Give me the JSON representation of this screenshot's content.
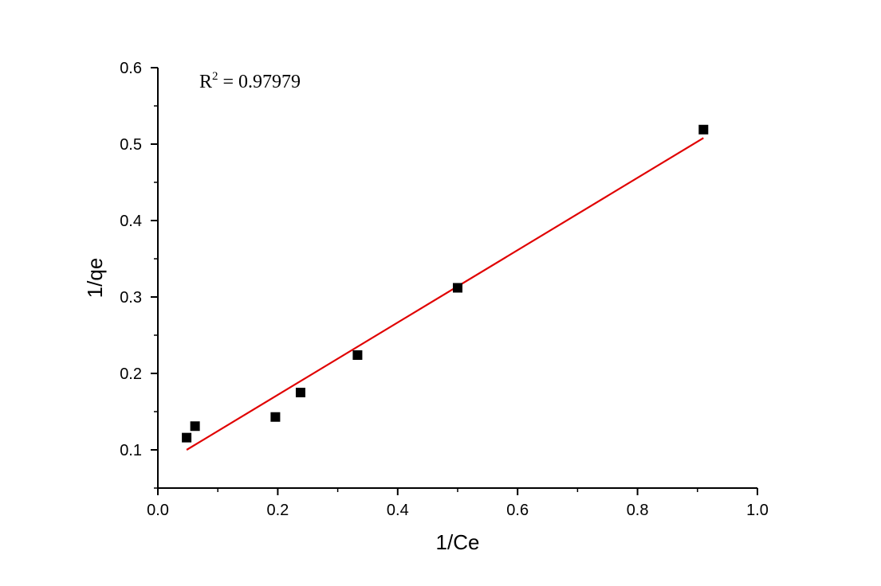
{
  "chart_data": {
    "type": "scatter",
    "title": "",
    "xlabel": "1/Ce",
    "ylabel": "1/qe",
    "xlim": [
      0.0,
      1.0
    ],
    "ylim": [
      0.05,
      0.6
    ],
    "x_ticks": [
      0.0,
      0.2,
      0.4,
      0.6,
      0.8,
      1.0
    ],
    "x_tick_labels": [
      "0.0",
      "0.2",
      "0.4",
      "0.6",
      "0.8",
      "1.0"
    ],
    "y_ticks": [
      0.1,
      0.2,
      0.3,
      0.4,
      0.5,
      0.6
    ],
    "y_tick_labels": [
      "0.1",
      "0.2",
      "0.3",
      "0.4",
      "0.5",
      "0.6"
    ],
    "grid": false,
    "legend": "none",
    "series": [
      {
        "type": "scatter",
        "marker": "square",
        "color": "#000000",
        "x": [
          0.048,
          0.062,
          0.196,
          0.238,
          0.333,
          0.5,
          0.91
        ],
        "y": [
          0.116,
          0.131,
          0.143,
          0.175,
          0.224,
          0.312,
          0.519
        ]
      },
      {
        "type": "line",
        "color": "#e00000",
        "x": [
          0.048,
          0.91
        ],
        "y": [
          0.1,
          0.508
        ]
      }
    ],
    "annotations": {
      "r2_label": "R",
      "r2_sup": "2",
      "r2_value": " = 0.97979"
    }
  }
}
